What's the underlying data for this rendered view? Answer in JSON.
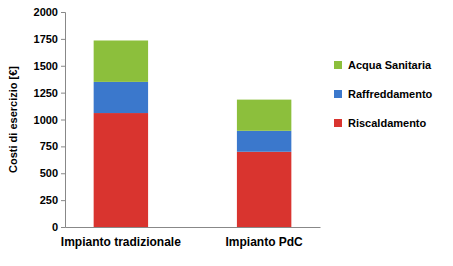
{
  "chart_data": {
    "type": "bar",
    "stacked": true,
    "legend": "right",
    "grid": false,
    "y_label": "Costi di esercizio [€]",
    "categories": [
      "Impianto tradizionale",
      "Impianto PdC"
    ],
    "series": [
      {
        "name": "Riscaldamento",
        "color": "#d9342f",
        "values": [
          1060,
          700
        ]
      },
      {
        "name": "Raffreddamento",
        "color": "#3b78cc",
        "values": [
          290,
          195
        ]
      },
      {
        "name": "Acqua Sanitaria",
        "color": "#8cbf3c",
        "values": [
          385,
          290
        ]
      }
    ],
    "ylim": [
      0,
      2000
    ],
    "yticks": [
      0,
      250,
      500,
      750,
      1000,
      1250,
      1500,
      1750,
      2000
    ]
  }
}
